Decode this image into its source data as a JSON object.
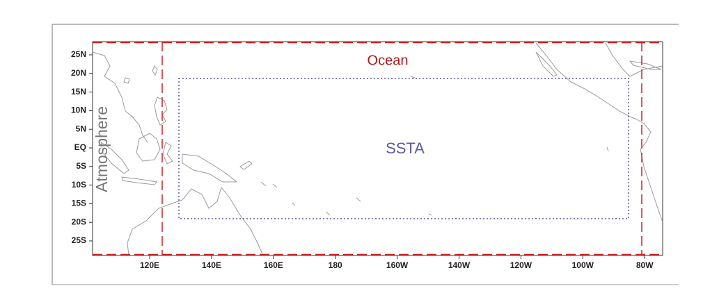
{
  "map": {
    "labels": {
      "ocean": "Ocean",
      "ssta": "SSTA",
      "atmosphere": "Atmosphere"
    },
    "lat_ticks": [
      "25N",
      "20N",
      "15N",
      "10N",
      "5N",
      "EQ",
      "5S",
      "10S",
      "15S",
      "20S",
      "25S"
    ],
    "lon_ticks": [
      "120E",
      "140E",
      "160E",
      "180",
      "160W",
      "140W",
      "120W",
      "100W",
      "80W"
    ]
  }
}
